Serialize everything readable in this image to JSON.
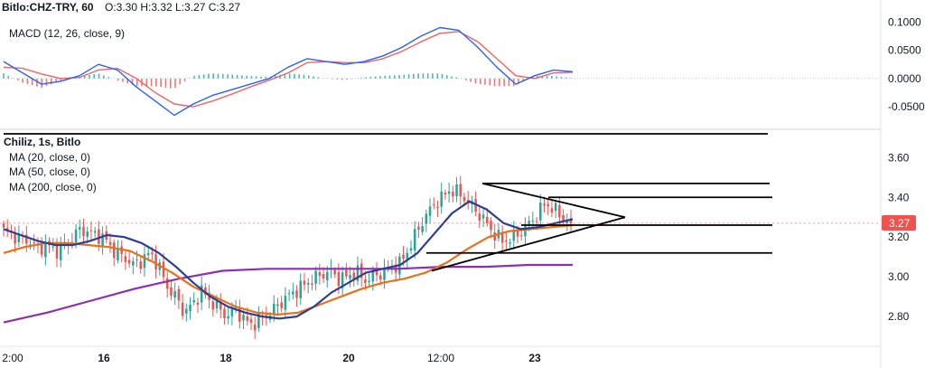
{
  "header": {
    "symbol_line": "Bitlo:CHZ-TRY, 60",
    "ohlc": "O:3.30 H:3.32 L:3.27 C:3.27"
  },
  "macd_panel": {
    "indicator_label": "MACD (12, 26, close, 9)",
    "y_ticks": [
      "0.1000",
      "0.0500",
      "0.0000",
      "-0.0500"
    ]
  },
  "price_panel": {
    "series_label": "Chiliz, 1s, Bitlo",
    "ma_labels": [
      "MA (20, close, 0)",
      "MA (50, close, 0)",
      "MA (200, close, 0)"
    ],
    "y_ticks": [
      "3.60",
      "3.40",
      "3.20",
      "3.00",
      "2.80"
    ],
    "last_price": "3.27"
  },
  "x_axis": {
    "ticks": [
      "2:00",
      "16",
      "18",
      "20",
      "12:00",
      "23"
    ]
  },
  "colors": {
    "up": "#26a69a",
    "down": "#ef5350",
    "ma20": "#2a3f95",
    "ma50": "#e8701a",
    "ma200": "#8e2fb0",
    "macd": "#2962ff",
    "signal": "#f06464",
    "last_price_badge": "#ef5350",
    "drawing": "#000000"
  },
  "chart_data": {
    "type": "candlestick",
    "title": "Bitlo:CHZ-TRY, 60",
    "series_names": [
      "Chiliz, 1s, Bitlo",
      "MA (20, close, 0)",
      "MA (50, close, 0)",
      "MA (200, close, 0)",
      "MACD (12, 26, close, 9)"
    ],
    "x_ticks": [
      "2:00",
      "16",
      "18",
      "20",
      "12:00",
      "23"
    ],
    "price_ylim": [
      2.65,
      3.72
    ],
    "macd_ylim": [
      -0.085,
      0.11
    ],
    "last_close": 3.27,
    "open": 3.3,
    "high": 3.32,
    "low": 3.27,
    "close": 3.27,
    "close_path": [
      3.23,
      3.21,
      3.19,
      3.18,
      3.14,
      3.16,
      3.13,
      3.15,
      3.2,
      3.24,
      3.22,
      3.21,
      3.18,
      3.12,
      3.1,
      3.06,
      3.08,
      3.12,
      3.06,
      2.95,
      2.9,
      2.82,
      2.86,
      2.93,
      2.88,
      2.84,
      2.8,
      2.84,
      2.78,
      2.76,
      2.79,
      2.82,
      2.86,
      2.9,
      2.93,
      2.96,
      2.99,
      3.01,
      3.03,
      2.99,
      3.0,
      3.03,
      2.98,
      3.0,
      3.02,
      3.05,
      3.06,
      3.13,
      3.22,
      3.3,
      3.36,
      3.4,
      3.44,
      3.42,
      3.38,
      3.33,
      3.28,
      3.22,
      3.18,
      3.19,
      3.22,
      3.26,
      3.31,
      3.37,
      3.34,
      3.3,
      3.27
    ],
    "ma20": [
      3.24,
      3.21,
      3.18,
      3.16,
      3.16,
      3.18,
      3.21,
      3.2,
      3.17,
      3.12,
      3.05,
      2.97,
      2.9,
      2.85,
      2.82,
      2.8,
      2.79,
      2.8,
      2.85,
      2.92,
      2.97,
      3.02,
      3.04,
      3.06,
      3.12,
      3.22,
      3.32,
      3.38,
      3.34,
      3.27,
      3.24,
      3.25,
      3.27,
      3.29
    ],
    "ma50": [
      3.12,
      3.15,
      3.17,
      3.17,
      3.16,
      3.15,
      3.13,
      3.08,
      3.02,
      2.95,
      2.9,
      2.85,
      2.82,
      2.81,
      2.82,
      2.86,
      2.9,
      2.94,
      2.97,
      2.99,
      3.02,
      3.07,
      3.14,
      3.2,
      3.23,
      3.24,
      3.25,
      3.26
    ],
    "ma200": [
      2.77,
      2.82,
      2.88,
      2.94,
      2.99,
      3.03,
      3.04,
      3.04,
      3.04,
      3.04,
      3.05,
      3.05,
      3.06,
      3.06
    ],
    "macd_values": [
      0.03,
      0.01,
      -0.01,
      -0.005,
      0.005,
      0.025,
      0.015,
      -0.015,
      -0.04,
      -0.065,
      -0.045,
      -0.03,
      -0.02,
      -0.01,
      0.0,
      0.02,
      0.035,
      0.03,
      0.025,
      0.03,
      0.04,
      0.055,
      0.075,
      0.09,
      0.085,
      0.055,
      0.02,
      -0.01,
      0.005,
      0.015,
      0.012
    ],
    "signal_values": [
      0.02,
      0.018,
      0.008,
      0.0,
      0.002,
      0.015,
      0.018,
      0.0,
      -0.025,
      -0.045,
      -0.05,
      -0.04,
      -0.028,
      -0.015,
      -0.003,
      0.01,
      0.028,
      0.03,
      0.028,
      0.028,
      0.035,
      0.048,
      0.065,
      0.08,
      0.083,
      0.065,
      0.035,
      0.005,
      0.0,
      0.01,
      0.011
    ],
    "horizontal_levels": [
      3.72,
      3.47,
      3.4,
      3.26,
      3.12
    ],
    "triangle_pattern": {
      "top_start": 3.47,
      "bottom_start": 3.03,
      "apex": 3.3
    }
  }
}
